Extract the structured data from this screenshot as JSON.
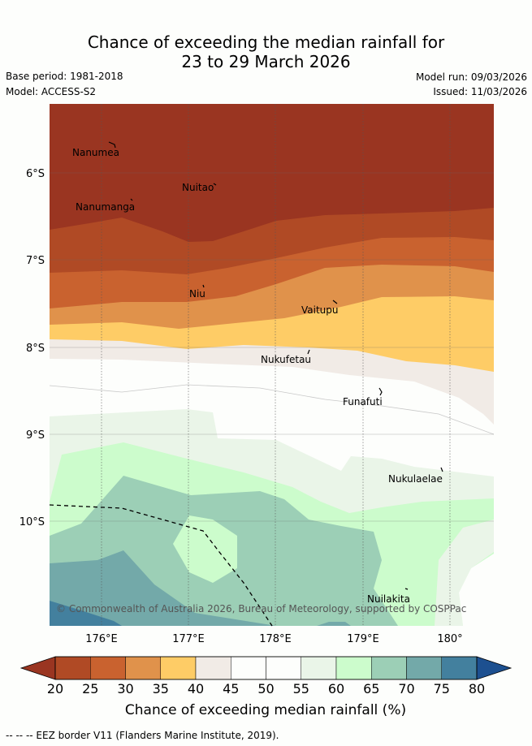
{
  "title": {
    "line1": "Chance of exceeding the median rainfall for",
    "line2": "23 to 29 March 2026"
  },
  "meta": {
    "base_period": "Base period: 1981-2018",
    "model": "Model: ACCESS-S2",
    "model_run": "Model run: 09/03/2026",
    "issued": "Issued: 11/03/2026"
  },
  "map": {
    "lat_labels": [
      "6°S",
      "7°S",
      "8°S",
      "9°S",
      "10°S"
    ],
    "lon_labels": [
      "176°E",
      "177°E",
      "178°E",
      "179°E",
      "180°"
    ],
    "places": [
      {
        "name": "Nanumea"
      },
      {
        "name": "Nuitao"
      },
      {
        "name": "Nanumanga"
      },
      {
        "name": "Niu"
      },
      {
        "name": "Vaitupu"
      },
      {
        "name": "Nukufetau"
      },
      {
        "name": "Funafuti"
      },
      {
        "name": "Nukulaelae"
      },
      {
        "name": "Nuilakita"
      }
    ],
    "copyright": "© Commonwealth of Australia 2026, Bureau of Meteorology, supported by COSPPac"
  },
  "colorbar": {
    "ticks": [
      "20",
      "25",
      "30",
      "35",
      "40",
      "45",
      "50",
      "55",
      "60",
      "65",
      "70",
      "75",
      "80"
    ],
    "colors": [
      "#b04a25",
      "#c9622f",
      "#e0924b",
      "#fecc66",
      "#f1ebe6",
      "#fdfefc",
      "#fdfefc",
      "#eaf5e8",
      "#ccfccc",
      "#9ccfb6",
      "#73a9a9",
      "#43809e"
    ],
    "under_color": "#9a3521",
    "over_color": "#1d5090",
    "label": "Chance of exceeding median rainfall (%)"
  },
  "footer": {
    "legend_text": "--  --  -- EEZ border V11 (Flanders Marine Institute, 2019)."
  }
}
